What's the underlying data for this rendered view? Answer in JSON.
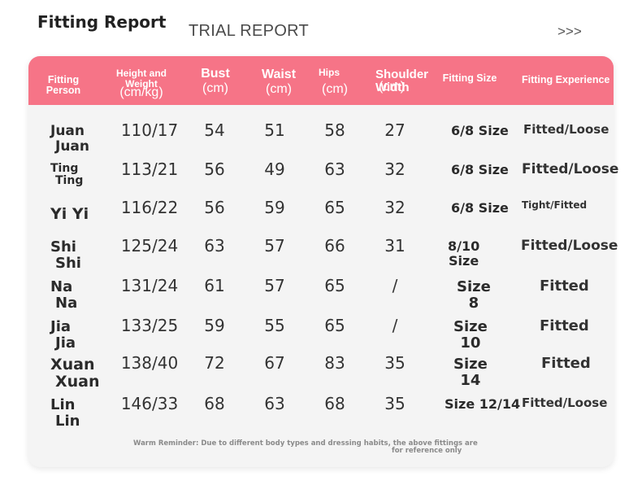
{
  "page": {
    "title": "Fitting Report",
    "subtitle": "TRIAL REPORT",
    "arrows": ">>>"
  },
  "headers": {
    "person": "Fitting Person",
    "height_weight": "Height and Weight",
    "height_weight_unit": "(cm/kg)",
    "bust": "Bust",
    "bust_unit": "(cm)",
    "waist": "Waist",
    "waist_unit": "(cm)",
    "hips": "Hips",
    "hips_unit": "(cm)",
    "shoulder": "Shoulder Width",
    "shoulder_unit": "(cm)",
    "size": "Fitting Size",
    "experience": "Fitting Experience"
  },
  "rows": [
    {
      "name1": "Juan",
      "name2": "Juan",
      "hw": "110/17",
      "bust": "54",
      "waist": "51",
      "hips": "58",
      "shoulder": "27",
      "size1": "6/8 Size",
      "size2": "",
      "exp": "Fitted/Loose"
    },
    {
      "name1": "Ting",
      "name2": "Ting",
      "hw": "113/21",
      "bust": "56",
      "waist": "49",
      "hips": "63",
      "shoulder": "32",
      "size1": "6/8 Size",
      "size2": "",
      "exp": "Fitted/Loose"
    },
    {
      "name1": "Yi Yi",
      "name2": "",
      "hw": "116/22",
      "bust": "56",
      "waist": "59",
      "hips": "65",
      "shoulder": "32",
      "size1": "6/8 Size",
      "size2": "",
      "exp": "Tight/Fitted"
    },
    {
      "name1": "Shi",
      "name2": "Shi",
      "hw": "125/24",
      "bust": "63",
      "waist": "57",
      "hips": "66",
      "shoulder": "31",
      "size1": "8/10",
      "size2": "Size",
      "exp": "Fitted/Loose"
    },
    {
      "name1": "Na",
      "name2": "Na",
      "hw": "131/24",
      "bust": "61",
      "waist": "57",
      "hips": "65",
      "shoulder": "/",
      "size1": "Size",
      "size2": "8",
      "exp": "Fitted"
    },
    {
      "name1": "Jia",
      "name2": "Jia",
      "hw": "133/25",
      "bust": "59",
      "waist": "55",
      "hips": "65",
      "shoulder": "/",
      "size1": "Size",
      "size2": "10",
      "exp": "Fitted"
    },
    {
      "name1": "Xuan",
      "name2": "Xuan",
      "hw": "138/40",
      "bust": "72",
      "waist": "67",
      "hips": "83",
      "shoulder": "35",
      "size1": "Size",
      "size2": "14",
      "exp": "Fitted"
    },
    {
      "name1": "Lin",
      "name2": "Lin",
      "hw": "146/33",
      "bust": "68",
      "waist": "63",
      "hips": "68",
      "shoulder": "35",
      "size1": "Size 12/14",
      "size2": "",
      "exp": "Fitted/Loose"
    }
  ],
  "note": {
    "line1": "Warm Reminder: Due to different body types and dressing habits, the above fittings are",
    "line2": "for reference only"
  }
}
